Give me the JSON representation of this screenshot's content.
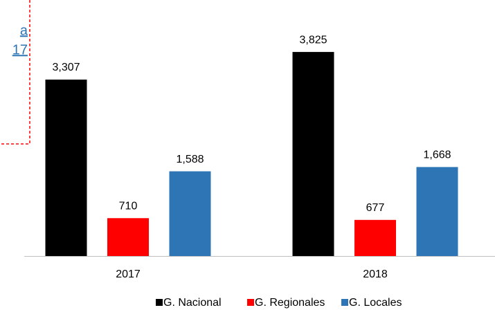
{
  "chart_data": {
    "type": "bar",
    "annotations": [
      "a",
      "17"
    ],
    "categories": [
      "2017",
      "2018"
    ],
    "series": [
      {
        "name": "G. Nacional",
        "color": "#000000",
        "values": [
          3307,
          3825
        ],
        "value_labels": [
          "3,307",
          "3,825"
        ]
      },
      {
        "name": "G. Regionales",
        "color": "#ff0000",
        "values": [
          710,
          677
        ],
        "value_labels": [
          "710",
          "677"
        ]
      },
      {
        "name": "G. Locales",
        "color": "#2e75b6",
        "values": [
          1588,
          1668
        ],
        "value_labels": [
          "1,588",
          "1,668"
        ]
      }
    ],
    "legend": "bottom"
  }
}
